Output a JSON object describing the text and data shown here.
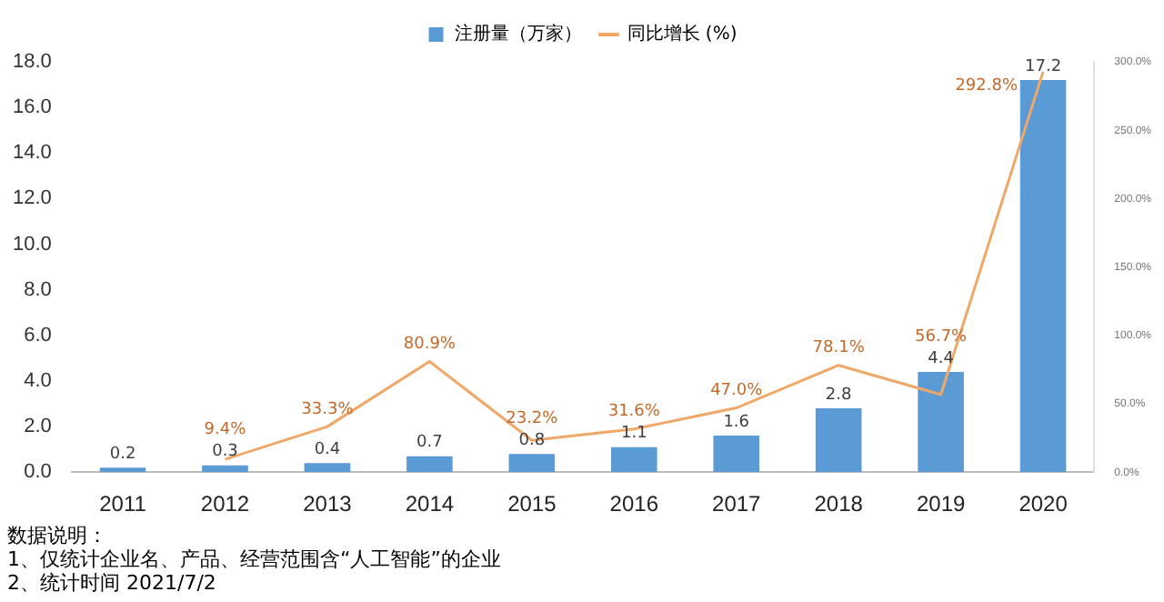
{
  "chart_data": {
    "type": "bar",
    "categories": [
      "2011",
      "2012",
      "2013",
      "2014",
      "2015",
      "2016",
      "2017",
      "2018",
      "2019",
      "2020"
    ],
    "series": [
      {
        "name": "注册量（万家）",
        "color": "#5b9bd5",
        "values": [
          0.2,
          0.3,
          0.4,
          0.7,
          0.8,
          1.1,
          1.6,
          2.8,
          4.4,
          17.2
        ],
        "value_labels": [
          "0.2",
          "0.3",
          "0.4",
          "0.7",
          "0.8",
          "1.1",
          "1.6",
          "2.8",
          "4.4",
          "17.2"
        ]
      },
      {
        "name": "同比增长 (%)",
        "type": "line",
        "axis": "y2",
        "color": "#f0a868",
        "values": [
          null,
          9.4,
          33.3,
          80.9,
          23.2,
          31.6,
          47.0,
          78.1,
          56.7,
          292.8
        ],
        "value_labels": [
          null,
          "9.4%",
          "33.3%",
          "80.9%",
          "23.2%",
          "31.6%",
          "47.0%",
          "78.1%",
          "56.7%",
          "292.8%"
        ]
      }
    ],
    "ylim": [
      0,
      18
    ],
    "yticks": [
      {
        "value": 0,
        "label": "0.0"
      },
      {
        "value": 2,
        "label": "2.0"
      },
      {
        "value": 4,
        "label": "4.0"
      },
      {
        "value": 6,
        "label": "6.0"
      },
      {
        "value": 8,
        "label": "8.0"
      },
      {
        "value": 10,
        "label": "10.0"
      },
      {
        "value": 12,
        "label": "12.0"
      },
      {
        "value": 14,
        "label": "14.0"
      },
      {
        "value": 16,
        "label": "16.0"
      },
      {
        "value": 18,
        "label": "18.0"
      }
    ],
    "y2lim": [
      0,
      300
    ],
    "y2ticks": [
      {
        "value": 0,
        "label": "0.0%"
      },
      {
        "value": 50,
        "label": "50.0%"
      },
      {
        "value": 100,
        "label": "100.0%"
      },
      {
        "value": 150,
        "label": "150.0%"
      },
      {
        "value": 200,
        "label": "200.0%"
      },
      {
        "value": 250,
        "label": "250.0%"
      },
      {
        "value": 300,
        "label": "300.0%"
      }
    ],
    "legend": "top",
    "grid": false,
    "marker": "none",
    "line_style": "solid",
    "annotations": [
      "数据说明：",
      "1、仅统计企业名、产品、经营范围含“人工智能”的企业",
      "2、统计时间 2021/7/2"
    ]
  }
}
